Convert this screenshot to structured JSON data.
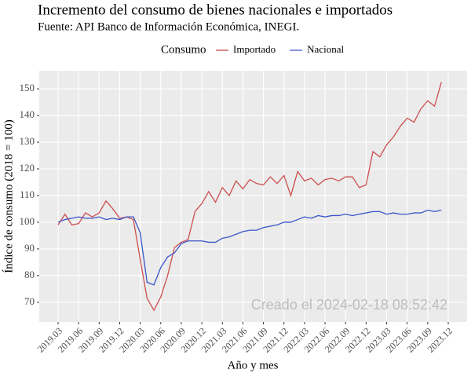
{
  "chart_data": {
    "type": "line",
    "title": "Incremento del consumo de bienes nacionales e importados",
    "subtitle": "Fuente: API Banco de Información Económica, INEGI.",
    "x_label": "Año y mes",
    "y_label": "Índice de consumo (2018 = 100)",
    "legend_title": "Consumo",
    "legend_position": "top",
    "annotation": "Creado el  2024-02-18 08:52:42",
    "grid": true,
    "categories": [
      "2019.03",
      null,
      null,
      "2019.06",
      null,
      null,
      "2019.09",
      null,
      null,
      "2019.12",
      null,
      null,
      "2020.03",
      null,
      null,
      "2020.06",
      null,
      null,
      "2020.09",
      null,
      null,
      "2020.12",
      null,
      null,
      "2021.03",
      null,
      null,
      "2021.06",
      null,
      null,
      "2021.09",
      null,
      null,
      "2021.12",
      null,
      null,
      "2022.03",
      null,
      null,
      "2022.06",
      null,
      null,
      "2022.09",
      null,
      null,
      "2022.12",
      null,
      null,
      "2023.03",
      null,
      null,
      "2023.06",
      null,
      null,
      "2023.09",
      null,
      null,
      "2023.12"
    ],
    "series": [
      {
        "name": "Importado",
        "color": "#cd4f4f",
        "values": [
          99,
          103,
          99,
          99.5,
          103.5,
          102,
          103.5,
          108,
          105,
          101.5,
          102,
          101,
          86,
          71.5,
          67,
          72,
          80,
          90.5,
          92.5,
          93.5,
          104,
          107,
          111.5,
          107.5,
          113,
          110,
          115.5,
          112.5,
          116,
          114.5,
          114,
          117,
          114.5,
          117.5,
          110,
          119,
          115.5,
          116.5,
          114,
          116,
          116.5,
          115.5,
          117,
          117,
          113,
          114,
          126.5,
          124.5,
          129,
          132,
          136,
          139,
          137.5,
          142.5,
          145.5,
          143.5,
          152.5,
          null
        ]
      },
      {
        "name": "Nacional",
        "color": "#3a55c8",
        "values": [
          100,
          101,
          101.5,
          102,
          101.5,
          101.5,
          102,
          101,
          101.5,
          101,
          102,
          102,
          96,
          77.5,
          76.5,
          83,
          87,
          88.5,
          92,
          93,
          93,
          93,
          92.5,
          92.5,
          94,
          94.5,
          95.5,
          96.5,
          97,
          97,
          98,
          98.5,
          99,
          100,
          100,
          101,
          102,
          101.5,
          102.5,
          102,
          102.5,
          102.5,
          103,
          102.5,
          103,
          103.5,
          104,
          104,
          103,
          103.5,
          103,
          103,
          103.5,
          103.5,
          104.5,
          104,
          104.5,
          null
        ]
      }
    ],
    "ylim": [
      62.6,
      156.8
    ],
    "yticks": [
      70,
      80,
      90,
      100,
      110,
      120,
      130,
      140,
      150
    ]
  }
}
